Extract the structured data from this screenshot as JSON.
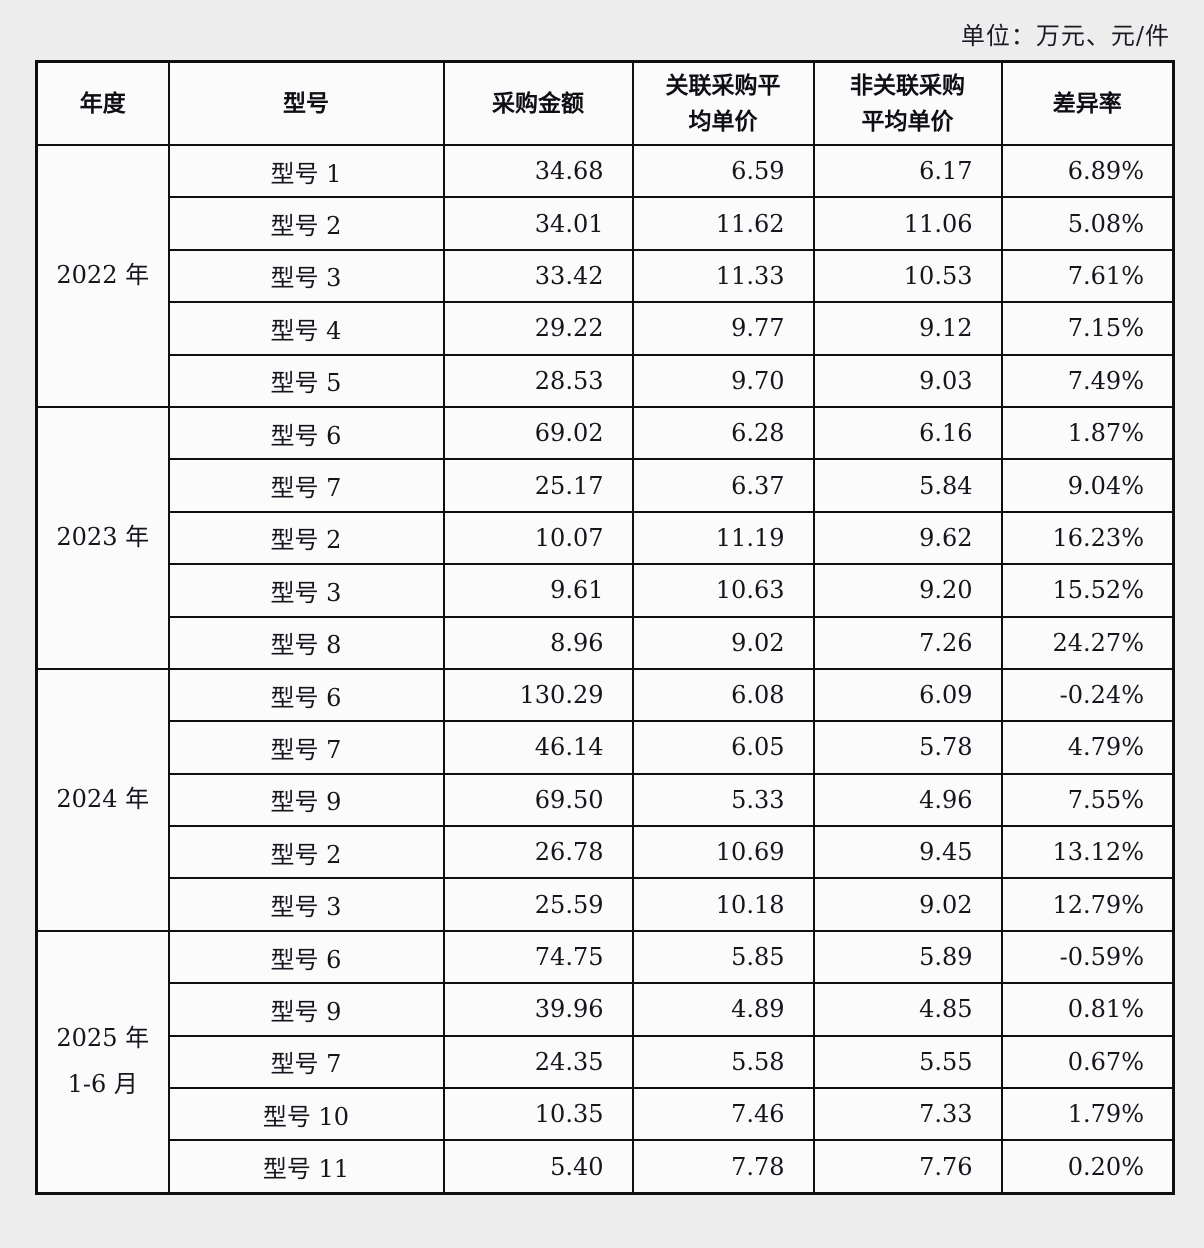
{
  "unit_label": "单位：万元、元/件",
  "table": {
    "columns": [
      "年度",
      "型号",
      "采购金额",
      "关联采购平\n均单价",
      "非关联采购\n平均单价",
      "差异率"
    ],
    "groups": [
      {
        "year": "2022 年",
        "rows": [
          {
            "model": "型号 1",
            "values": [
              "34.68",
              "6.59",
              "6.17",
              "6.89%"
            ]
          },
          {
            "model": "型号 2",
            "values": [
              "34.01",
              "11.62",
              "11.06",
              "5.08%"
            ]
          },
          {
            "model": "型号 3",
            "values": [
              "33.42",
              "11.33",
              "10.53",
              "7.61%"
            ]
          },
          {
            "model": "型号 4",
            "values": [
              "29.22",
              "9.77",
              "9.12",
              "7.15%"
            ]
          },
          {
            "model": "型号 5",
            "values": [
              "28.53",
              "9.70",
              "9.03",
              "7.49%"
            ]
          }
        ]
      },
      {
        "year": "2023 年",
        "rows": [
          {
            "model": "型号 6",
            "values": [
              "69.02",
              "6.28",
              "6.16",
              "1.87%"
            ]
          },
          {
            "model": "型号 7",
            "values": [
              "25.17",
              "6.37",
              "5.84",
              "9.04%"
            ]
          },
          {
            "model": "型号 2",
            "values": [
              "10.07",
              "11.19",
              "9.62",
              "16.23%"
            ]
          },
          {
            "model": "型号 3",
            "values": [
              "9.61",
              "10.63",
              "9.20",
              "15.52%"
            ]
          },
          {
            "model": "型号 8",
            "values": [
              "8.96",
              "9.02",
              "7.26",
              "24.27%"
            ]
          }
        ]
      },
      {
        "year": "2024 年",
        "rows": [
          {
            "model": "型号 6",
            "values": [
              "130.29",
              "6.08",
              "6.09",
              "-0.24%"
            ]
          },
          {
            "model": "型号 7",
            "values": [
              "46.14",
              "6.05",
              "5.78",
              "4.79%"
            ]
          },
          {
            "model": "型号 9",
            "values": [
              "69.50",
              "5.33",
              "4.96",
              "7.55%"
            ]
          },
          {
            "model": "型号 2",
            "values": [
              "26.78",
              "10.69",
              "9.45",
              "13.12%"
            ]
          },
          {
            "model": "型号 3",
            "values": [
              "25.59",
              "10.18",
              "9.02",
              "12.79%"
            ]
          }
        ]
      },
      {
        "year": "2025 年\n1-6 月",
        "rows": [
          {
            "model": "型号 6",
            "values": [
              "74.75",
              "5.85",
              "5.89",
              "-0.59%"
            ]
          },
          {
            "model": "型号 9",
            "values": [
              "39.96",
              "4.89",
              "4.85",
              "0.81%"
            ]
          },
          {
            "model": "型号 7",
            "values": [
              "24.35",
              "5.58",
              "5.55",
              "0.67%"
            ]
          },
          {
            "model": "型号 10",
            "values": [
              "10.35",
              "7.46",
              "7.33",
              "1.79%"
            ]
          },
          {
            "model": "型号 11",
            "values": [
              "5.40",
              "7.78",
              "7.76",
              "0.20%"
            ]
          }
        ]
      }
    ]
  }
}
